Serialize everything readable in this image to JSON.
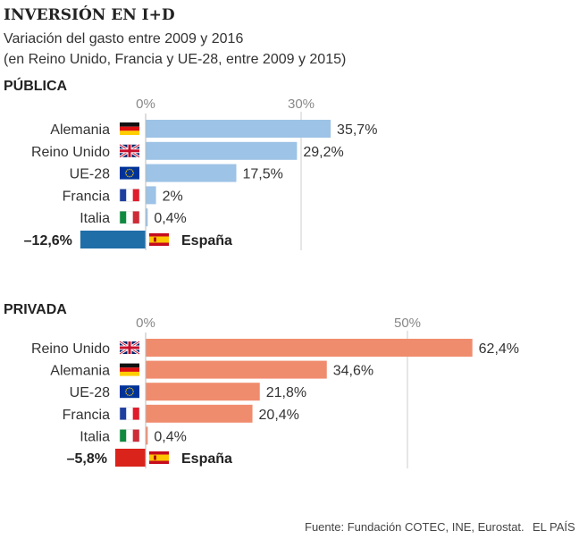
{
  "title": "INVERSIÓN EN I+D",
  "subtitle_line1": "Variación del gasto entre 2009 y 2016",
  "subtitle_line2": "(en Reino Unido, Francia y UE-28, entre 2009 y 2015)",
  "footer": {
    "source": "Fuente: Fundación COTEC, INE, Eurostat.",
    "publisher": "EL PAÍS"
  },
  "chart_data": [
    {
      "type": "bar",
      "orientation": "horizontal",
      "title": "PÚBLICA",
      "ticks": [
        0,
        30
      ],
      "tick_labels": [
        "0%",
        "30%"
      ],
      "colors": {
        "bar": "#9dc3e6",
        "highlight": "#1f6ea8"
      },
      "categories": [
        {
          "name": "Alemania",
          "flag": "germany-flag",
          "value": 35.7,
          "label": "35,7%"
        },
        {
          "name": "Reino Unido",
          "flag": "uk-flag",
          "value": 29.2,
          "label": "29,2%"
        },
        {
          "name": "UE-28",
          "flag": "eu-flag",
          "value": 17.5,
          "label": "17,5%"
        },
        {
          "name": "Francia",
          "flag": "france-flag",
          "value": 2,
          "label": "2%"
        },
        {
          "name": "Italia",
          "flag": "italy-flag",
          "value": 0.4,
          "label": "0,4%"
        },
        {
          "name": "España",
          "flag": "spain-flag",
          "value": -12.6,
          "label": "–12,6%",
          "highlight": true
        }
      ]
    },
    {
      "type": "bar",
      "orientation": "horizontal",
      "title": "PRIVADA",
      "ticks": [
        0,
        50
      ],
      "tick_labels": [
        "0%",
        "50%"
      ],
      "colors": {
        "bar": "#f08c6e",
        "highlight": "#d9231b"
      },
      "categories": [
        {
          "name": "Reino Unido",
          "flag": "uk-flag",
          "value": 62.4,
          "label": "62,4%"
        },
        {
          "name": "Alemania",
          "flag": "germany-flag",
          "value": 34.6,
          "label": "34,6%"
        },
        {
          "name": "UE-28",
          "flag": "eu-flag",
          "value": 21.8,
          "label": "21,8%"
        },
        {
          "name": "Francia",
          "flag": "france-flag",
          "value": 20.4,
          "label": "20,4%"
        },
        {
          "name": "Italia",
          "flag": "italy-flag",
          "value": 0.4,
          "label": "0,4%"
        },
        {
          "name": "España",
          "flag": "spain-flag",
          "value": -5.8,
          "label": "–5,8%",
          "highlight": true
        }
      ]
    }
  ]
}
